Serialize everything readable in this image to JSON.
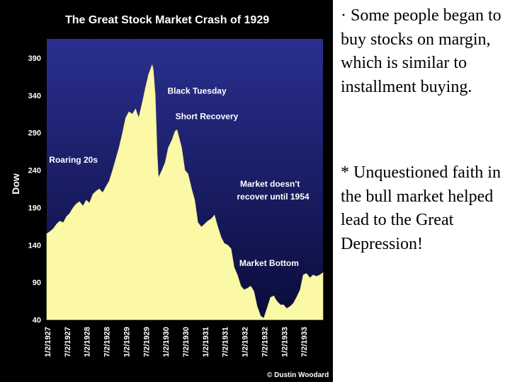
{
  "bullets": [
    {
      "marker": "·",
      "text": "Some people began to buy stocks on margin, which is similar to installment buying."
    },
    {
      "marker": "*",
      "text": "Unquestioned faith in the bull market helped lead to the Great Depression!"
    }
  ],
  "chart_data": {
    "type": "area",
    "title": "The Great Stock Market Crash of 1929",
    "ylabel": "Dow",
    "xlabel": "",
    "ylim": [
      40,
      390
    ],
    "yticks": [
      390,
      340,
      290,
      240,
      190,
      140,
      90,
      40
    ],
    "xlim": [
      1927.0,
      1934.0
    ],
    "xtick_labels": [
      "1/2/1927",
      "7/2/1927",
      "1/2/1928",
      "7/2/1928",
      "1/2/1929",
      "7/2/1929",
      "1/2/1930",
      "7/2/1930",
      "1/2/1931",
      "7/2/1931",
      "1/2/1932",
      "7/2/1932",
      "1/2/1933",
      "7/2/1933"
    ],
    "xtick_values": [
      1927.0,
      1927.5,
      1928.0,
      1928.5,
      1929.0,
      1929.5,
      1930.0,
      1930.5,
      1931.0,
      1931.5,
      1932.0,
      1932.5,
      1933.0,
      1933.5
    ],
    "grid": false,
    "colors": {
      "background": "#000000",
      "plot_top": "#2a2f8f",
      "plot_bottom": "#0a0c3a",
      "fill": "#fbf8a6",
      "text": "#ffffff"
    },
    "series": [
      {
        "x": [
          1927.0,
          1927.08,
          1927.17,
          1927.25,
          1927.33,
          1927.42,
          1927.5,
          1927.58,
          1927.67,
          1927.75,
          1927.83,
          1927.92,
          1928.0,
          1928.08,
          1928.17,
          1928.25,
          1928.33,
          1928.42,
          1928.5,
          1928.58,
          1928.67,
          1928.75,
          1928.83,
          1928.92,
          1929.0,
          1929.08,
          1929.17,
          1929.25,
          1929.33,
          1929.42,
          1929.5,
          1929.58,
          1929.67,
          1929.7,
          1929.75,
          1929.8,
          1929.83,
          1929.92,
          1930.0,
          1930.08,
          1930.17,
          1930.25,
          1930.3,
          1930.42,
          1930.5,
          1930.58,
          1930.67,
          1930.75,
          1930.83,
          1930.92,
          1931.0,
          1931.08,
          1931.17,
          1931.25,
          1931.33,
          1931.42,
          1931.5,
          1931.58,
          1931.67,
          1931.75,
          1931.83,
          1931.92,
          1932.0,
          1932.08,
          1932.17,
          1932.25,
          1932.33,
          1932.42,
          1932.5,
          1932.58,
          1932.67,
          1932.75,
          1932.83,
          1932.92,
          1933.0,
          1933.08,
          1933.17,
          1933.25,
          1933.33,
          1933.42,
          1933.5,
          1933.58,
          1933.67,
          1933.75,
          1933.83,
          1933.92,
          1934.0
        ],
        "values": [
          155,
          158,
          162,
          168,
          172,
          170,
          178,
          182,
          190,
          195,
          198,
          192,
          200,
          196,
          208,
          212,
          215,
          210,
          218,
          225,
          240,
          255,
          270,
          290,
          310,
          318,
          315,
          322,
          310,
          330,
          350,
          368,
          381,
          375,
          340,
          260,
          230,
          240,
          250,
          270,
          280,
          292,
          294,
          270,
          240,
          235,
          215,
          200,
          170,
          164,
          168,
          172,
          175,
          180,
          165,
          150,
          142,
          140,
          135,
          110,
          100,
          85,
          80,
          82,
          85,
          78,
          58,
          45,
          42,
          55,
          70,
          72,
          65,
          60,
          60,
          55,
          58,
          62,
          70,
          80,
          100,
          102,
          96,
          100,
          98,
          100,
          103
        ]
      }
    ],
    "annotations": [
      {
        "text": "Black Tuesday",
        "x": 1930.06,
        "y": 342
      },
      {
        "text": "Short Recovery",
        "x": 1930.26,
        "y": 308
      },
      {
        "text": "Roaring 20s",
        "x": 1927.06,
        "y": 250
      },
      {
        "text": "Market doesn't",
        "x": 1931.9,
        "y": 218
      },
      {
        "text": "recover until 1954",
        "x": 1931.82,
        "y": 201
      },
      {
        "text": "Market Bottom",
        "x": 1931.88,
        "y": 112
      }
    ],
    "credit": "© Dustin Woodard"
  }
}
